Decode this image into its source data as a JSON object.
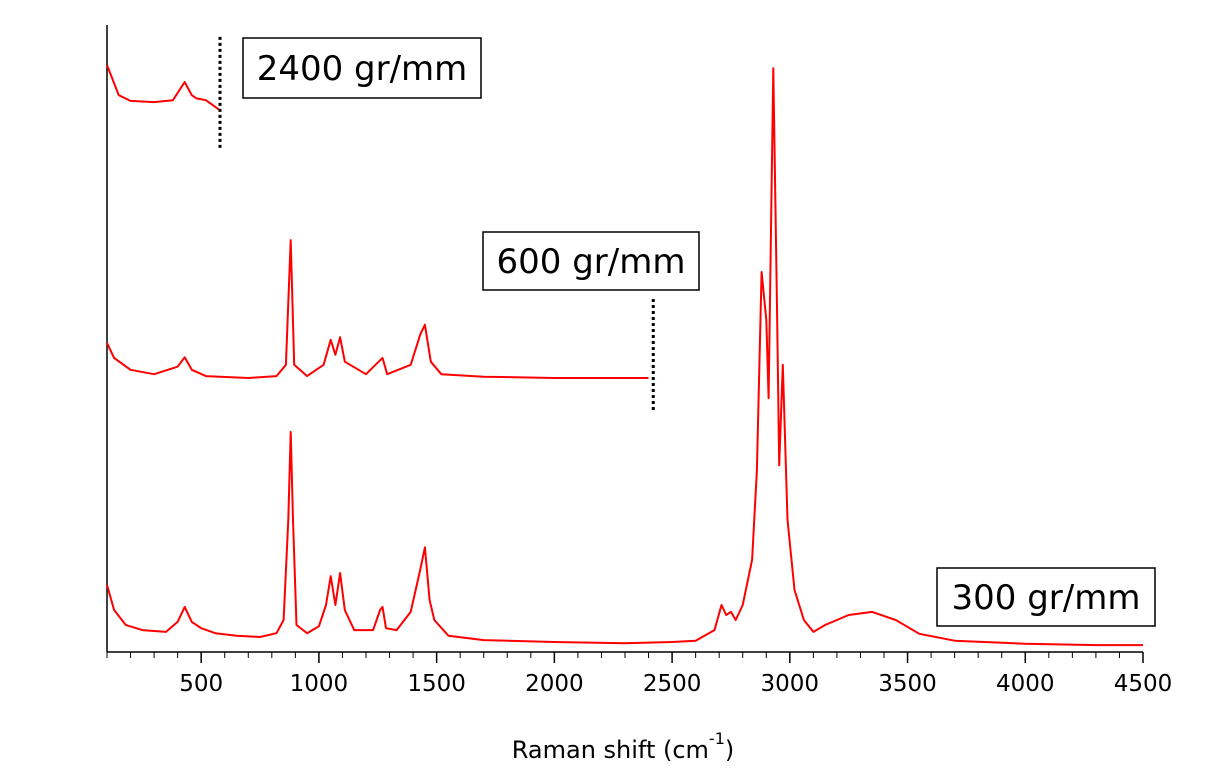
{
  "chart_data": {
    "type": "line",
    "x_label": {
      "text": "Raman shift (cm",
      "superscript": "-1",
      "suffix": ")"
    },
    "xlim": [
      100,
      4500
    ],
    "ylim": [
      0,
      100
    ],
    "xticks": [
      500,
      1000,
      1500,
      2000,
      2500,
      3000,
      3500,
      4000,
      4500
    ],
    "xminorticks": [
      100,
      200,
      300,
      400,
      600,
      700,
      800,
      900,
      1100,
      1200,
      1300,
      1400,
      1600,
      1700,
      1800,
      1900,
      2100,
      2200,
      2300,
      2400,
      2600,
      2700,
      2800,
      2900,
      3100,
      3200,
      3300,
      3400,
      3600,
      3700,
      3800,
      3900,
      4100,
      4200,
      4300,
      4400
    ],
    "series": [
      {
        "name": "300 gr/mm",
        "color": "#ff0000",
        "x": [
          100,
          130,
          180,
          250,
          350,
          400,
          430,
          460,
          500,
          560,
          650,
          750,
          820,
          850,
          870,
          880,
          890,
          905,
          950,
          1000,
          1030,
          1050,
          1070,
          1090,
          1110,
          1150,
          1230,
          1260,
          1270,
          1285,
          1330,
          1390,
          1430,
          1450,
          1470,
          1490,
          1550,
          1700,
          2000,
          2300,
          2500,
          2600,
          2680,
          2710,
          2730,
          2750,
          2770,
          2800,
          2840,
          2860,
          2880,
          2900,
          2910,
          2930,
          2945,
          2955,
          2970,
          2990,
          3020,
          3060,
          3100,
          3150,
          3250,
          3350,
          3450,
          3550,
          3700,
          4000,
          4300,
          4500
        ],
        "values": [
          10.7,
          6.7,
          4.3,
          3.5,
          3.2,
          4.8,
          7.2,
          4.8,
          3.8,
          3.0,
          2.6,
          2.4,
          3.0,
          5.1,
          21.1,
          35.1,
          21.1,
          4.3,
          3.0,
          4.1,
          7.5,
          12.1,
          7.5,
          12.6,
          6.7,
          3.5,
          3.5,
          6.7,
          7.2,
          3.8,
          3.5,
          6.4,
          13.1,
          16.7,
          8.3,
          5.1,
          2.6,
          1.9,
          1.6,
          1.4,
          1.6,
          1.8,
          3.5,
          7.5,
          5.9,
          6.4,
          5.1,
          7.5,
          14.7,
          29.0,
          60.6,
          53.0,
          40.5,
          93.1,
          56.1,
          29.8,
          45.8,
          21.1,
          9.9,
          5.1,
          3.2,
          4.3,
          5.9,
          6.4,
          5.1,
          2.9,
          1.8,
          1.3,
          1.1,
          1.1
        ]
      },
      {
        "name": "600 gr/mm",
        "color": "#ff0000",
        "x": [
          100,
          130,
          200,
          300,
          400,
          430,
          460,
          520,
          700,
          820,
          860,
          880,
          895,
          950,
          1020,
          1050,
          1070,
          1090,
          1110,
          1200,
          1270,
          1290,
          1390,
          1430,
          1450,
          1475,
          1520,
          1700,
          2000,
          2400
        ],
        "values": [
          49.3,
          46.9,
          45.0,
          44.3,
          45.5,
          47.0,
          45.0,
          44.0,
          43.7,
          44.0,
          45.8,
          65.7,
          45.8,
          44.0,
          45.8,
          49.8,
          47.4,
          50.2,
          46.3,
          44.3,
          46.9,
          44.3,
          45.8,
          50.6,
          52.2,
          46.3,
          44.3,
          43.9,
          43.7,
          43.7
        ]
      },
      {
        "name": "2400 gr/mm",
        "color": "#ff0000",
        "x": [
          100,
          150,
          200,
          300,
          380,
          430,
          460,
          480,
          520,
          580
        ],
        "values": [
          93.6,
          88.8,
          87.9,
          87.7,
          88.0,
          90.9,
          88.8,
          88.3,
          88.0,
          86.4
        ]
      }
    ],
    "cutoff_lines": [
      {
        "x": 580,
        "y": [
          80.4,
          98.4
        ]
      },
      {
        "x": 2420,
        "y": [
          38.6,
          56.5
        ]
      }
    ]
  }
}
